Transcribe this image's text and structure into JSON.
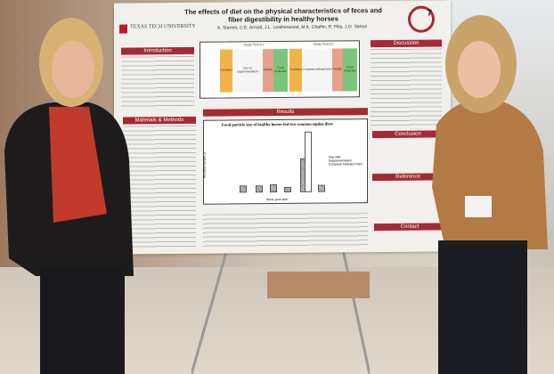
{
  "poster": {
    "title": "The effects of diet on the physical characteristics of feces and fiber digestibility in healthy horses",
    "authors": "A. Starrett, C.E. Arnold, J.L. Leatherwood, M.K. Chaffin, R. Pilla, J.O. Sarturi",
    "institution": "TEXAS TECH UNIVERSITY",
    "board_number": "7",
    "sections": {
      "introduction": "Introduction",
      "methods": "Materials & Methods",
      "results": "Results",
      "discussion": "Discussion",
      "conclusion": "Conclusion",
      "reference": "Reference",
      "contact": "Contact"
    },
    "figure1": {
      "period1": "Study Period 1",
      "period2": "Study Period 2",
      "labels": [
        "Transition",
        "Hay w/ supplementation",
        "Motility",
        "Fecal Collection",
        "Transition",
        "Complete pelleted feed",
        "Motility",
        "Fecal Collection"
      ]
    },
    "figure2": {
      "title": "Fecal particle size of healthy horses fed two common equine diets",
      "xlabel": "Sieve pore size",
      "ylabel": "Residual weight, g",
      "legend": [
        "Hay with Supplementation",
        "Complete Pelleted Feed"
      ]
    }
  },
  "colors": {
    "banner": "#a52a35",
    "transition": "#f0b54a",
    "motility": "#e8a08a",
    "collection": "#7cc57a"
  }
}
